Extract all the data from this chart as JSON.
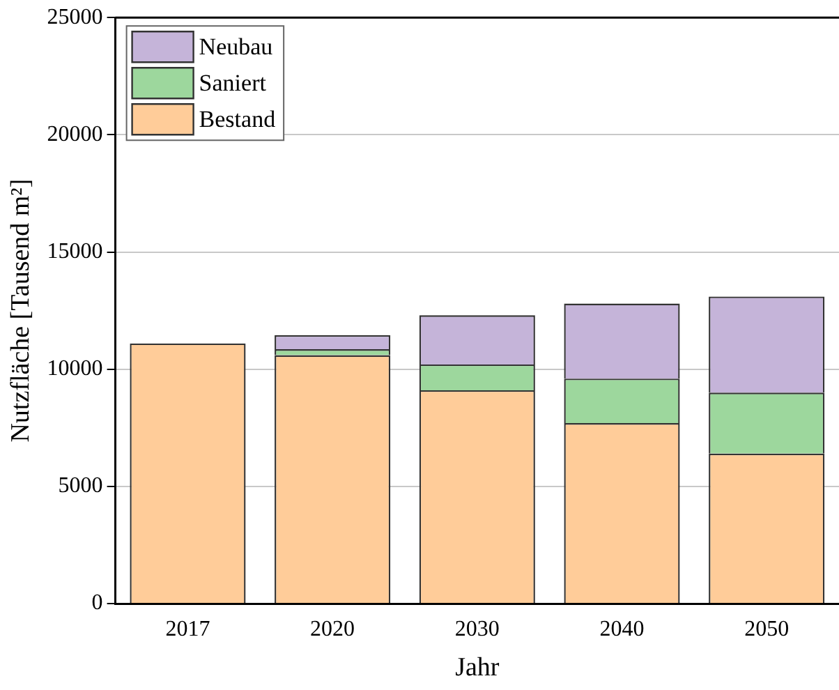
{
  "chart_data": {
    "type": "bar",
    "xlabel": "Jahr",
    "ylabel": "Nutzfläche [Tausend m²]",
    "categories": [
      "2017",
      "2020",
      "2030",
      "2040",
      "2050"
    ],
    "stacked": true,
    "ylim": [
      0,
      25000
    ],
    "yticks": [
      0,
      5000,
      10000,
      15000,
      20000,
      25000
    ],
    "grid": "y",
    "legend": "top left",
    "series": [
      {
        "name": "Bestand",
        "color": "#ffcc99",
        "values": [
          11100,
          10600,
          9100,
          7700,
          6400
        ]
      },
      {
        "name": "Saniert",
        "color": "#9dd79d",
        "values": [
          null,
          250,
          1100,
          1900,
          2600
        ]
      },
      {
        "name": "Neubau",
        "color": "#c5b4d9",
        "values": [
          null,
          600,
          2100,
          3200,
          4100
        ]
      }
    ]
  }
}
